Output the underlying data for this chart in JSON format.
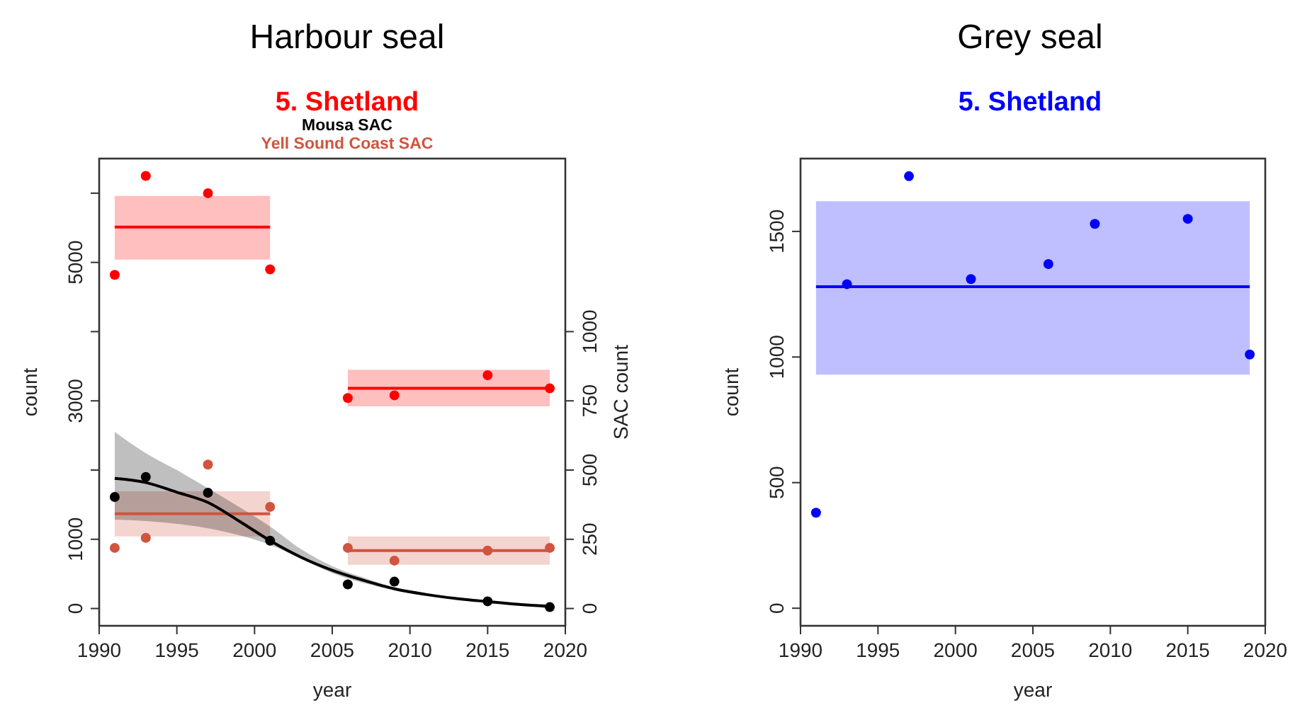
{
  "chart_data": [
    {
      "type": "scatter",
      "title": "Harbour seal",
      "xlabel": "year",
      "ylabel": "count",
      "y2label": "SAC count",
      "xlim": [
        1990,
        2020
      ],
      "xticks": [
        1990,
        1995,
        2000,
        2005,
        2010,
        2015,
        2020
      ],
      "ylim": [
        -250,
        6500
      ],
      "yticks": [
        0,
        1000,
        {
          "value": 2000,
          "label": null
        },
        3000,
        {
          "value": 4000,
          "label": null
        },
        5000,
        {
          "value": 6000,
          "label": null
        }
      ],
      "y2lim": [
        -62.5,
        1625
      ],
      "y2ticks": [
        0,
        250,
        500,
        750,
        1000
      ],
      "marker": "circle",
      "legend": "top",
      "series": [
        {
          "type": "line",
          "marker": "none",
          "color": "#ff0000",
          "x": [
            1991,
            2001
          ],
          "values": [
            5510,
            5510
          ],
          "lower": [
            5040,
            5040
          ],
          "upper": [
            5960,
            5960
          ]
        },
        {
          "type": "line",
          "marker": "none",
          "color": "#ff0000",
          "x": [
            2006,
            2019
          ],
          "values": [
            3180,
            3180
          ],
          "lower": [
            2920,
            2920
          ],
          "upper": [
            3450,
            3450
          ]
        },
        {
          "type": "line",
          "marker": "none",
          "axis": "y2",
          "color": "#d0543e",
          "x": [
            1991,
            2001
          ],
          "values": [
            342,
            342
          ],
          "lower": [
            260,
            260
          ],
          "upper": [
            423,
            423
          ]
        },
        {
          "type": "line",
          "marker": "none",
          "axis": "y2",
          "color": "#d0543e",
          "x": [
            2006,
            2019
          ],
          "values": [
            209,
            209
          ],
          "lower": [
            158,
            158
          ],
          "upper": [
            260,
            260
          ]
        },
        {
          "type": "line",
          "marker": "none",
          "axis": "y2",
          "color": "#000000",
          "x": [
            1991,
            1993,
            1995,
            1997,
            1999,
            2001,
            2003,
            2005,
            2007,
            2009,
            2011,
            2013,
            2015,
            2017,
            2019
          ],
          "values": [
            470,
            455,
            420,
            383,
            316,
            245,
            185,
            138,
            102,
            71,
            51,
            36,
            25,
            15,
            8
          ],
          "lower": [
            321,
            316,
            306,
            290,
            265,
            230,
            179,
            128,
            92,
            66,
            46,
            32,
            22,
            12,
            4
          ],
          "upper": [
            638,
            561,
            500,
            434,
            367,
            296,
            214,
            153,
            112,
            77,
            56,
            40,
            30,
            20,
            12
          ]
        },
        {
          "name": "5. Shetland",
          "color": "#ff0000",
          "x": [
            1991,
            1993,
            1997,
            2001,
            2006,
            2009,
            2015,
            2019
          ],
          "values": [
            4820,
            6250,
            6000,
            4900,
            3040,
            3080,
            3370,
            3180
          ]
        },
        {
          "axis": "y2",
          "name": "Mousa SAC",
          "color": "#000000",
          "x": [
            1991,
            1993,
            1997,
            2001,
            2006,
            2009,
            2015,
            2019
          ],
          "values": [
            403,
            475,
            418,
            245,
            87,
            97,
            26,
            5
          ]
        },
        {
          "axis": "y2",
          "name": "Yell Sound Coast SAC",
          "color": "#d0543e",
          "x": [
            1991,
            1993,
            1997,
            2001,
            2006,
            2009,
            2015,
            2019
          ],
          "values": [
            219,
            255,
            520,
            367,
            219,
            173,
            209,
            219
          ]
        }
      ]
    },
    {
      "type": "scatter",
      "title": "Grey seal",
      "xlabel": "year",
      "ylabel": "count",
      "xlim": [
        1990,
        2020
      ],
      "xticks": [
        1990,
        1995,
        2000,
        2005,
        2010,
        2015,
        2020
      ],
      "ylim": [
        -70,
        1790
      ],
      "yticks": [
        0,
        500,
        1000,
        1500
      ],
      "marker": "circle",
      "legend": "top",
      "series": [
        {
          "type": "line",
          "marker": "none",
          "color": "#0000ff",
          "x": [
            1991,
            2019
          ],
          "values": [
            1280,
            1280
          ],
          "lower": [
            930,
            930
          ],
          "upper": [
            1620,
            1620
          ]
        },
        {
          "name": "5. Shetland",
          "color": "#0000ff",
          "x": [
            1991,
            1993,
            1997,
            2001,
            2006,
            2009,
            2015,
            2019
          ],
          "values": [
            380,
            1290,
            1720,
            1310,
            1370,
            1530,
            1550,
            1010
          ]
        }
      ]
    }
  ]
}
